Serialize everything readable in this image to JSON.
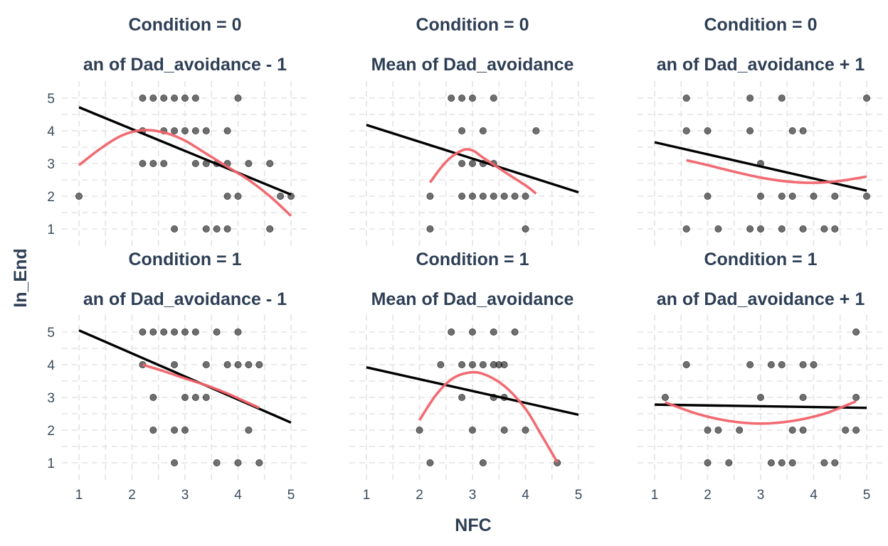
{
  "x_axis_title": "NFC",
  "y_axis_title": "In_End",
  "colors": {
    "point": "#1a1a1a",
    "linear_fit": "#000000",
    "smooth_fit": "#f0636a",
    "title": "#2e3f55"
  },
  "chart_data": {
    "type": "scatter",
    "layout": "facet grid 2 rows x 3 columns",
    "xlabel": "NFC",
    "ylabel": "In_End",
    "xlim": [
      1,
      5
    ],
    "ylim": [
      1,
      5
    ],
    "x_ticks": [
      1,
      2,
      3,
      4,
      5
    ],
    "y_ticks": [
      1,
      2,
      3,
      4,
      5
    ],
    "grid": true,
    "legend": "none",
    "panels": [
      {
        "condition_label": "Condition = 0",
        "avoidance_label": "an of Dad_avoidance - 1",
        "points": [
          [
            1,
            2
          ],
          [
            2.2,
            5
          ],
          [
            2.4,
            5
          ],
          [
            2.6,
            5
          ],
          [
            2.8,
            5
          ],
          [
            3,
            5
          ],
          [
            3.2,
            5
          ],
          [
            4,
            5
          ],
          [
            2.2,
            4
          ],
          [
            2.6,
            4
          ],
          [
            2.8,
            4
          ],
          [
            3,
            4
          ],
          [
            3.2,
            4
          ],
          [
            3.4,
            4
          ],
          [
            3.8,
            4
          ],
          [
            2.2,
            3
          ],
          [
            2.4,
            3
          ],
          [
            2.6,
            3
          ],
          [
            3.2,
            3
          ],
          [
            3.4,
            3
          ],
          [
            3.6,
            3
          ],
          [
            3.8,
            3
          ],
          [
            4.2,
            3
          ],
          [
            4.6,
            3
          ],
          [
            3.8,
            2
          ],
          [
            4,
            2
          ],
          [
            4.8,
            2
          ],
          [
            5,
            2
          ],
          [
            2.8,
            1
          ],
          [
            3.4,
            1
          ],
          [
            3.6,
            1
          ],
          [
            3.8,
            1
          ],
          [
            4.6,
            1
          ]
        ],
        "linear_fit": [
          [
            1,
            4.72
          ],
          [
            5,
            2.05
          ]
        ],
        "smooth_fit": [
          [
            1,
            2.95
          ],
          [
            1.4,
            3.45
          ],
          [
            1.8,
            3.85
          ],
          [
            2.2,
            4.02
          ],
          [
            2.6,
            3.95
          ],
          [
            3,
            3.7
          ],
          [
            3.4,
            3.3
          ],
          [
            3.8,
            2.9
          ],
          [
            4.2,
            2.5
          ],
          [
            4.6,
            2
          ],
          [
            5,
            1.4
          ]
        ]
      },
      {
        "condition_label": "Condition = 0",
        "avoidance_label": "Mean of Dad_avoidance",
        "points": [
          [
            2.6,
            5
          ],
          [
            2.8,
            5
          ],
          [
            3,
            5
          ],
          [
            3.4,
            5
          ],
          [
            2.8,
            4
          ],
          [
            3.2,
            4
          ],
          [
            4.2,
            4
          ],
          [
            2.8,
            3
          ],
          [
            3,
            3
          ],
          [
            3.2,
            3
          ],
          [
            3.4,
            3
          ],
          [
            2.2,
            2
          ],
          [
            2.8,
            2
          ],
          [
            3,
            2
          ],
          [
            3.2,
            2
          ],
          [
            3.4,
            2
          ],
          [
            3.6,
            2
          ],
          [
            3.8,
            2
          ],
          [
            4,
            2
          ],
          [
            2.2,
            1
          ],
          [
            4,
            1
          ]
        ],
        "linear_fit": [
          [
            1,
            4.18
          ],
          [
            5,
            2.12
          ]
        ],
        "smooth_fit": [
          [
            2.2,
            2.42
          ],
          [
            2.5,
            3.05
          ],
          [
            2.8,
            3.4
          ],
          [
            3,
            3.4
          ],
          [
            3.2,
            3.18
          ],
          [
            3.6,
            2.75
          ],
          [
            4,
            2.33
          ],
          [
            4.2,
            2.08
          ]
        ]
      },
      {
        "condition_label": "Condition = 0",
        "avoidance_label": "an of Dad_avoidance + 1",
        "points": [
          [
            1.6,
            5
          ],
          [
            2.8,
            5
          ],
          [
            3.4,
            5
          ],
          [
            5,
            5
          ],
          [
            1.6,
            4
          ],
          [
            2,
            4
          ],
          [
            2.8,
            4
          ],
          [
            3.6,
            4
          ],
          [
            3.8,
            4
          ],
          [
            3,
            3
          ],
          [
            2,
            2
          ],
          [
            3,
            2
          ],
          [
            3.4,
            2
          ],
          [
            3.6,
            2
          ],
          [
            4,
            2
          ],
          [
            4.4,
            2
          ],
          [
            5,
            2
          ],
          [
            1.6,
            1
          ],
          [
            2.2,
            1
          ],
          [
            2.8,
            1
          ],
          [
            3,
            1
          ],
          [
            3.4,
            1
          ],
          [
            3.8,
            1
          ],
          [
            4.2,
            1
          ],
          [
            4.4,
            1
          ]
        ],
        "linear_fit": [
          [
            1,
            3.65
          ],
          [
            5,
            2.17
          ]
        ],
        "smooth_fit": [
          [
            1.6,
            3.1
          ],
          [
            2,
            2.95
          ],
          [
            2.5,
            2.75
          ],
          [
            3,
            2.57
          ],
          [
            3.5,
            2.45
          ],
          [
            4,
            2.41
          ],
          [
            4.5,
            2.47
          ],
          [
            5,
            2.6
          ]
        ]
      },
      {
        "condition_label": "Condition = 1",
        "avoidance_label": "an of Dad_avoidance - 1",
        "points": [
          [
            2.2,
            5
          ],
          [
            2.4,
            5
          ],
          [
            2.6,
            5
          ],
          [
            2.8,
            5
          ],
          [
            3,
            5
          ],
          [
            3.2,
            5
          ],
          [
            3.6,
            5
          ],
          [
            4,
            5
          ],
          [
            2.2,
            4
          ],
          [
            2.8,
            4
          ],
          [
            3.4,
            4
          ],
          [
            3.8,
            4
          ],
          [
            4,
            4
          ],
          [
            4.2,
            4
          ],
          [
            4.4,
            4
          ],
          [
            2.4,
            3
          ],
          [
            3,
            3
          ],
          [
            3.2,
            3
          ],
          [
            3.4,
            3
          ],
          [
            2.4,
            2
          ],
          [
            2.8,
            2
          ],
          [
            3,
            2
          ],
          [
            4.2,
            2
          ],
          [
            2.8,
            1
          ],
          [
            3.6,
            1
          ],
          [
            4,
            1
          ],
          [
            4.4,
            1
          ]
        ],
        "linear_fit": [
          [
            1,
            5.05
          ],
          [
            5,
            2.23
          ]
        ],
        "smooth_fit": [
          [
            2.2,
            4
          ],
          [
            2.6,
            3.8
          ],
          [
            3,
            3.58
          ],
          [
            3.4,
            3.37
          ],
          [
            3.8,
            3.12
          ],
          [
            4.1,
            2.9
          ],
          [
            4.4,
            2.68
          ]
        ]
      },
      {
        "condition_label": "Condition = 1",
        "avoidance_label": "Mean of Dad_avoidance",
        "points": [
          [
            2.6,
            5
          ],
          [
            3,
            5
          ],
          [
            3.4,
            5
          ],
          [
            3.8,
            5
          ],
          [
            2.4,
            4
          ],
          [
            2.8,
            4
          ],
          [
            3,
            4
          ],
          [
            3.2,
            4
          ],
          [
            3.4,
            4
          ],
          [
            3.5,
            4
          ],
          [
            3.6,
            4
          ],
          [
            2.8,
            3
          ],
          [
            3.4,
            3
          ],
          [
            3.6,
            3
          ],
          [
            2,
            2
          ],
          [
            3,
            2
          ],
          [
            3.6,
            2
          ],
          [
            4,
            2
          ],
          [
            2.2,
            1
          ],
          [
            3.2,
            1
          ],
          [
            4.6,
            1
          ]
        ],
        "linear_fit": [
          [
            1,
            3.92
          ],
          [
            5,
            2.47
          ]
        ],
        "smooth_fit": [
          [
            2,
            2.3
          ],
          [
            2.3,
            3.05
          ],
          [
            2.6,
            3.55
          ],
          [
            2.9,
            3.75
          ],
          [
            3.2,
            3.72
          ],
          [
            3.6,
            3.35
          ],
          [
            4,
            2.65
          ],
          [
            4.3,
            1.85
          ],
          [
            4.6,
            1.02
          ]
        ]
      },
      {
        "condition_label": "Condition = 1",
        "avoidance_label": "an of Dad_avoidance + 1",
        "points": [
          [
            1.2,
            3
          ],
          [
            1.6,
            4
          ],
          [
            4.8,
            5
          ],
          [
            2.8,
            4
          ],
          [
            3.2,
            4
          ],
          [
            3.4,
            4
          ],
          [
            3.8,
            4
          ],
          [
            4,
            4
          ],
          [
            3,
            3
          ],
          [
            3.8,
            3
          ],
          [
            4.8,
            3
          ],
          [
            2,
            2
          ],
          [
            2.2,
            2
          ],
          [
            2.6,
            2
          ],
          [
            3.6,
            2
          ],
          [
            3.8,
            2
          ],
          [
            4.6,
            2
          ],
          [
            4.8,
            2
          ],
          [
            2,
            1
          ],
          [
            2.4,
            1
          ],
          [
            3.2,
            1
          ],
          [
            3.4,
            1
          ],
          [
            3.6,
            1
          ],
          [
            4.2,
            1
          ],
          [
            4.4,
            1
          ]
        ],
        "linear_fit": [
          [
            1,
            2.78
          ],
          [
            5,
            2.68
          ]
        ],
        "smooth_fit": [
          [
            1.2,
            2.85
          ],
          [
            1.8,
            2.5
          ],
          [
            2.4,
            2.28
          ],
          [
            3,
            2.2
          ],
          [
            3.6,
            2.28
          ],
          [
            4.2,
            2.5
          ],
          [
            4.8,
            2.88
          ]
        ]
      }
    ]
  }
}
